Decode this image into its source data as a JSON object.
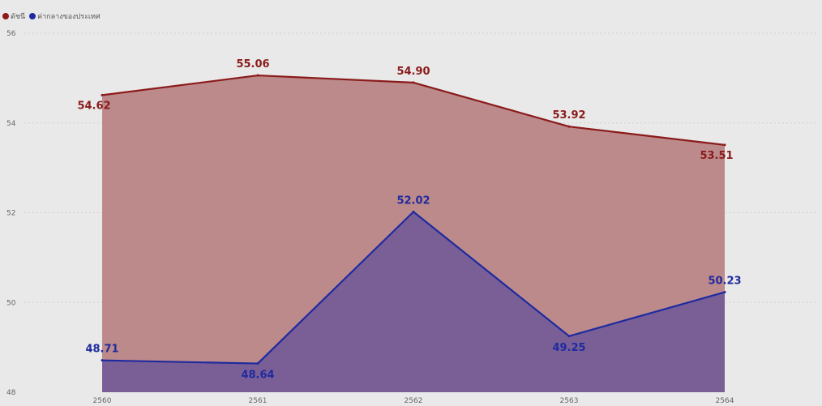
{
  "chart_data": {
    "type": "area",
    "categories": [
      "2560",
      "2561",
      "2562",
      "2563",
      "2564"
    ],
    "series": [
      {
        "name": "ดัชนี",
        "values": [
          54.62,
          55.06,
          54.9,
          53.92,
          53.51
        ],
        "color": "#8b1a1a",
        "fill": "#bc8a8a"
      },
      {
        "name": "ค่ากลางของประเทศ",
        "values": [
          48.71,
          48.64,
          52.02,
          49.25,
          50.23
        ],
        "color": "#1f2aa0",
        "fill": "#7a5f96"
      }
    ],
    "ylim": [
      48,
      56
    ],
    "yticks": [
      48,
      50,
      52,
      54,
      56
    ],
    "data_labels": {
      "ดัชนี": [
        "54.62",
        "55.06",
        "54.90",
        "53.92",
        "53.51"
      ],
      "ค่ากลางของประเทศ": [
        "48.71",
        "48.64",
        "52.02",
        "49.25",
        "50.23"
      ]
    },
    "grid": true,
    "legend_position": "top-left"
  }
}
